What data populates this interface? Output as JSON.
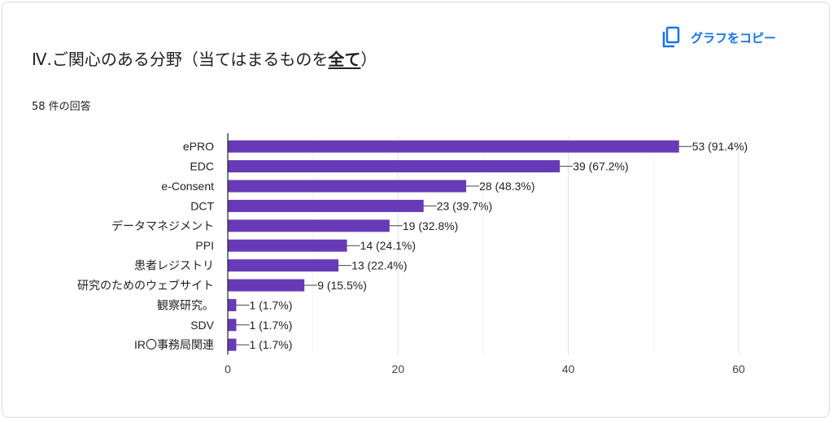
{
  "title_prefix": "Ⅳ.ご関心のある分野（当てはまるものを",
  "title_emphasis": "全て",
  "title_suffix": "）",
  "responses": "58 件の回答",
  "copy_button": {
    "label": "グラフをコピー",
    "icon": "copy-icon"
  },
  "colors": {
    "bar": "#673ab7",
    "accent": "#1a73e8",
    "grid": "#e8eaed",
    "axis": "#202124"
  },
  "chart_data": {
    "type": "bar",
    "orientation": "horizontal",
    "categories": [
      "ePRO",
      "EDC",
      "e-Consent",
      "DCT",
      "データマネジメント",
      "PPI",
      "患者レジストリ",
      "研究のためのウェブサイト",
      "観察研究。",
      "SDV",
      "IR〇事務局関連"
    ],
    "values": [
      53,
      39,
      28,
      23,
      19,
      14,
      13,
      9,
      1,
      1,
      1
    ],
    "labels": [
      "53 (91.4%)",
      "39 (67.2%)",
      "28 (48.3%)",
      "23 (39.7%)",
      "19 (32.8%)",
      "14 (24.1%)",
      "13 (22.4%)",
      "9 (15.5%)",
      "1 (1.7%)",
      "1 (1.7%)",
      "1 (1.7%)"
    ],
    "xticks": [
      "0",
      "20",
      "40",
      "60"
    ],
    "xlim": [
      0,
      60
    ],
    "grid": true,
    "legend": "none"
  }
}
